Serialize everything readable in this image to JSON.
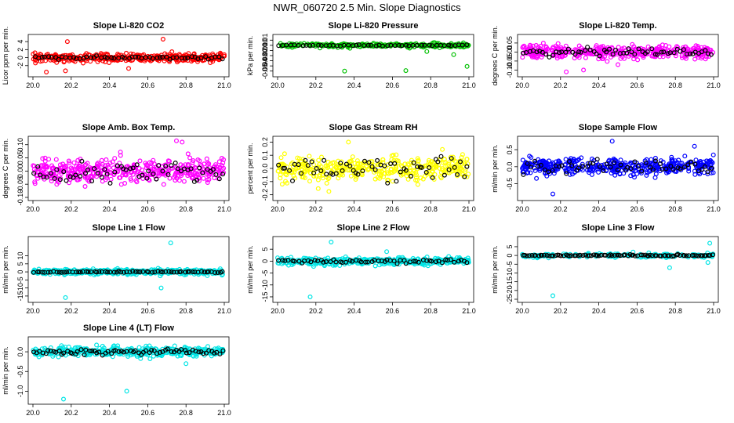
{
  "page": {
    "title": "NWR_060720  2.5 Min. Slope Diagnostics"
  },
  "chart_data": [
    {
      "type": "scatter",
      "title": "Slope Li-820 CO2",
      "ylabel": "Licor ppm per min.",
      "xlim": [
        20.0,
        21.0
      ],
      "ylim": [
        -4,
        5
      ],
      "xticks": [
        20.0,
        20.2,
        20.4,
        20.6,
        20.8,
        21.0
      ],
      "yticks": [
        -2,
        0,
        2,
        4
      ],
      "grid": false,
      "colors": {
        "main": "#ff0000",
        "highlight": "#000000"
      },
      "spread": 0.8,
      "n": 380,
      "nh": 55,
      "hl_spread": 0.3,
      "outliers": [
        [
          20.18,
          4.0
        ],
        [
          20.68,
          4.6
        ],
        [
          20.07,
          -3.6
        ],
        [
          20.17,
          -3.3
        ],
        [
          20.5,
          -2.7
        ]
      ],
      "seed": 1
    },
    {
      "type": "scatter",
      "title": "Slope Li-820 Pressure",
      "ylabel": "kPa per min.",
      "xlim": [
        20.0,
        21.0
      ],
      "ylim": [
        -0.055,
        0.015
      ],
      "xticks": [
        20.0,
        20.2,
        20.4,
        20.6,
        20.8,
        21.0
      ],
      "yticks": [
        0.01,
        0.0,
        -0.01,
        -0.02,
        -0.03,
        -0.04,
        -0.05
      ],
      "ytick_labels": [
        "0.01",
        "0.00",
        "-0.01",
        "-0.02",
        "-0.03",
        "-0.04",
        "-0.05"
      ],
      "grid": false,
      "colors": {
        "main": "#00c000",
        "highlight": "#000000"
      },
      "spread": 0.003,
      "n": 260,
      "nh": 50,
      "hl_spread": 0.001,
      "outliers": [
        [
          20.35,
          -0.05
        ],
        [
          20.67,
          -0.049
        ],
        [
          20.99,
          -0.041
        ],
        [
          20.92,
          -0.018
        ],
        [
          20.78,
          -0.012
        ]
      ],
      "seed": 2
    },
    {
      "type": "scatter",
      "title": "Slope Li-820 Temp.",
      "ylabel": "degrees C per min.",
      "xlim": [
        20.0,
        21.0
      ],
      "ylim": [
        -0.12,
        0.08
      ],
      "xticks": [
        20.0,
        20.2,
        20.4,
        20.6,
        20.8,
        21.0
      ],
      "yticks": [
        -0.1,
        -0.05,
        0.0,
        0.05
      ],
      "ytick_labels": [
        "-0.10",
        "-0.05",
        "0.00",
        "0.05"
      ],
      "grid": false,
      "colors": {
        "main": "#ff00ff",
        "highlight": "#000000"
      },
      "spread": 0.03,
      "n": 420,
      "nh": 60,
      "hl_spread": 0.02,
      "outliers": [
        [
          20.23,
          -0.11
        ],
        [
          20.32,
          -0.1
        ],
        [
          20.5,
          -0.07
        ]
      ],
      "seed": 3
    },
    {
      "type": "scatter",
      "title": "Slope Amb. Box Temp.",
      "ylabel": "degrees C per min.",
      "xlim": [
        20.0,
        21.0
      ],
      "ylim": [
        -0.1,
        0.12
      ],
      "xticks": [
        20.0,
        20.2,
        20.4,
        20.6,
        20.8,
        21.0
      ],
      "yticks": [
        -0.1,
        -0.05,
        0.0,
        0.05,
        0.1
      ],
      "ytick_labels": [
        "-0.10",
        "-0.05",
        "0.00",
        "0.05",
        "0.10"
      ],
      "grid": false,
      "colors": {
        "main": "#ff00ff",
        "highlight": "#000000"
      },
      "spread": 0.035,
      "n": 420,
      "nh": 60,
      "hl_spread": 0.03,
      "outliers": [
        [
          20.75,
          0.115
        ],
        [
          20.78,
          0.11
        ]
      ],
      "seed": 4
    },
    {
      "type": "scatter",
      "title": "Slope Gas Stream RH",
      "ylabel": "percent per min.",
      "xlim": [
        20.0,
        21.0
      ],
      "ylim": [
        -0.22,
        0.22
      ],
      "xticks": [
        20.0,
        20.2,
        20.4,
        20.6,
        20.8,
        21.0
      ],
      "yticks": [
        -0.2,
        -0.1,
        0.0,
        0.1,
        0.2
      ],
      "ytick_labels": [
        "-0.2",
        "-0.1",
        "0.0",
        "0.1",
        "0.2"
      ],
      "grid": false,
      "colors": {
        "main": "#ffff00",
        "highlight": "#000000"
      },
      "spread": 0.08,
      "n": 380,
      "nh": 60,
      "hl_spread": 0.08,
      "outliers": [
        [
          20.37,
          0.2
        ]
      ],
      "seed": 5
    },
    {
      "type": "scatter",
      "title": "Slope Sample Flow",
      "ylabel": "ml/min per min.",
      "xlim": [
        20.0,
        21.0
      ],
      "ylim": [
        -0.9,
        0.8
      ],
      "xticks": [
        20.0,
        20.2,
        20.4,
        20.6,
        20.8,
        21.0
      ],
      "yticks": [
        -0.5,
        0.0,
        0.5
      ],
      "ytick_labels": [
        "-0.5",
        "0.0",
        "0.5"
      ],
      "grid": false,
      "colors": {
        "main": "#0000ff",
        "highlight": "#000000"
      },
      "spread": 0.2,
      "n": 420,
      "nh": 55,
      "hl_spread": 0.15,
      "outliers": [
        [
          20.16,
          -0.8
        ],
        [
          20.47,
          0.75
        ],
        [
          20.9,
          0.6
        ]
      ],
      "seed": 6
    },
    {
      "type": "scatter",
      "title": "Slope Line 1 Flow",
      "ylabel": "ml/min per min.",
      "xlim": [
        20.0,
        21.0
      ],
      "ylim": [
        -17,
        20
      ],
      "xticks": [
        20.0,
        20.2,
        20.4,
        20.6,
        20.8,
        21.0
      ],
      "yticks": [
        -15,
        -10,
        -5,
        0,
        5,
        10
      ],
      "grid": false,
      "colors": {
        "main": "#00e5e5",
        "highlight": "#000000"
      },
      "spread": 1.2,
      "n": 420,
      "nh": 70,
      "hl_spread": 0.3,
      "outliers": [
        [
          20.72,
          18
        ],
        [
          20.17,
          -16
        ],
        [
          20.67,
          -10
        ]
      ],
      "seed": 7
    },
    {
      "type": "scatter",
      "title": "Slope Line 2 Flow",
      "ylabel": "ml/min per min.",
      "xlim": [
        20.0,
        21.0
      ],
      "ylim": [
        -16,
        9
      ],
      "xticks": [
        20.0,
        20.2,
        20.4,
        20.6,
        20.8,
        21.0
      ],
      "yticks": [
        -15,
        -10,
        -5,
        0,
        5
      ],
      "grid": false,
      "colors": {
        "main": "#00e5e5",
        "highlight": "#000000"
      },
      "spread": 1.3,
      "n": 400,
      "nh": 60,
      "hl_spread": 0.8,
      "outliers": [
        [
          20.28,
          8
        ],
        [
          20.57,
          4
        ],
        [
          20.17,
          -15
        ]
      ],
      "seed": 8
    },
    {
      "type": "scatter",
      "title": "Slope Line 3 Flow",
      "ylabel": "ml/min per min.",
      "xlim": [
        20.0,
        21.0
      ],
      "ylim": [
        -25,
        9
      ],
      "xticks": [
        20.0,
        20.2,
        20.4,
        20.6,
        20.8,
        21.0
      ],
      "yticks": [
        -25,
        -20,
        -15,
        -10,
        -5,
        0,
        5
      ],
      "grid": false,
      "colors": {
        "main": "#00e5e5",
        "highlight": "#000000"
      },
      "spread": 0.9,
      "n": 200,
      "nh": 90,
      "hl_spread": 0.3,
      "outliers": [
        [
          20.16,
          -23
        ],
        [
          20.98,
          7
        ],
        [
          20.77,
          -7
        ],
        [
          20.97,
          -4
        ]
      ],
      "seed": 9
    },
    {
      "type": "scatter",
      "title": "Slope Line 4 (LT) Flow",
      "ylabel": "ml/min per min.",
      "xlim": [
        20.0,
        21.0
      ],
      "ylim": [
        -1.25,
        0.3
      ],
      "xticks": [
        20.0,
        20.2,
        20.4,
        20.6,
        20.8,
        21.0
      ],
      "yticks": [
        -1.0,
        -0.5,
        0.0
      ],
      "ytick_labels": [
        "-1.0",
        "-0.5",
        "0.0"
      ],
      "grid": false,
      "colors": {
        "main": "#00e5e5",
        "highlight": "#000000"
      },
      "spread": 0.1,
      "n": 420,
      "nh": 70,
      "hl_spread": 0.06,
      "outliers": [
        [
          20.16,
          -1.2
        ],
        [
          20.49,
          -1.0
        ],
        [
          20.8,
          -0.3
        ]
      ],
      "seed": 10
    }
  ]
}
